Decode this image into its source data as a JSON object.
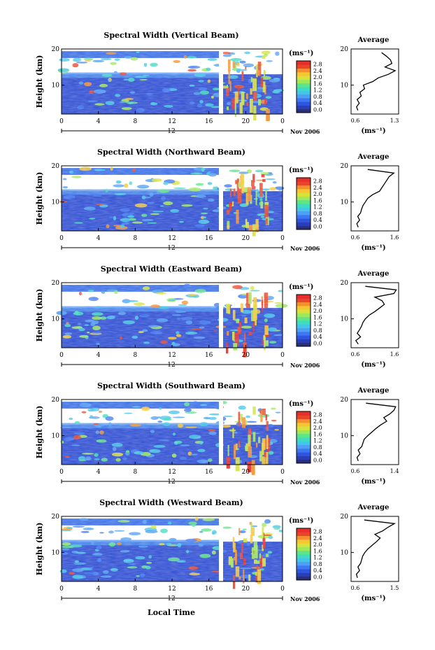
{
  "footer": {
    "xlabel": "Local Time"
  },
  "colorbar": {
    "unit": "(ms⁻¹)",
    "ticks": [
      "0.0",
      "0.4",
      "0.8",
      "1.2",
      "1.6",
      "2.0",
      "2.4",
      "2.8"
    ],
    "colors": [
      "#2b2f7a",
      "#2a3fb5",
      "#2f55e0",
      "#3d78f2",
      "#4f9ff5",
      "#43c6e8",
      "#3fdcc0",
      "#5fe488",
      "#9ee85a",
      "#d8e23a",
      "#f5c534",
      "#f38f2c",
      "#e9452a",
      "#e62f2a"
    ]
  },
  "panels": [
    {
      "title": "Spectral Width (Vertical Beam)",
      "profile_title": "Average",
      "x_unit": "(ms⁻¹)",
      "x_ticks": [
        "0.6",
        "1.3"
      ]
    },
    {
      "title": "Spectral Width (Northward Beam)",
      "profile_title": "Average",
      "x_unit": "(ms⁻¹)",
      "x_ticks": [
        "0.6",
        "1.6"
      ]
    },
    {
      "title": "Spectral Width (Eastward Beam)",
      "profile_title": "Average",
      "x_unit": "(ms⁻¹)",
      "x_ticks": [
        "0.6",
        "1.6"
      ]
    },
    {
      "title": "Spectral Width (Southward Beam)",
      "profile_title": "Average",
      "x_unit": "(ms⁻¹)",
      "x_ticks": [
        "0.6",
        "1.4"
      ]
    },
    {
      "title": "Spectral Width (Westward Beam)",
      "profile_title": "Average",
      "x_unit": "(ms⁻¹)",
      "x_ticks": [
        "0.6",
        "1.5"
      ]
    }
  ],
  "chart_data": [
    {
      "type": "heatmap",
      "title": "Spectral Width (Vertical Beam)",
      "xlabel": "",
      "ylabel": "Height (km)",
      "x_ticks": [
        "0",
        "4",
        "8",
        "12",
        "16",
        "20",
        "0"
      ],
      "y_ticks": [
        "10",
        "20"
      ],
      "date_label": "12",
      "month_label": "Nov 2006",
      "ylim": [
        2,
        20
      ],
      "colorbar_range": [
        0.0,
        2.8
      ]
    },
    {
      "type": "line",
      "title": "Average",
      "xlabel": "(ms⁻¹)",
      "xlim": [
        0.6,
        1.3
      ],
      "ylim": [
        2,
        20
      ],
      "series": [
        {
          "height_km": [
            3,
            4,
            5,
            6,
            7,
            8,
            9,
            10,
            11,
            12,
            13,
            14,
            15,
            16,
            17,
            18,
            19
          ],
          "values": [
            0.7,
            0.68,
            0.72,
            0.69,
            0.75,
            0.73,
            0.8,
            0.78,
            0.92,
            1.0,
            1.15,
            1.25,
            1.1,
            1.2,
            1.18,
            1.12,
            1.05
          ]
        }
      ]
    },
    {
      "type": "heatmap",
      "title": "Spectral Width (Northward Beam)",
      "xlabel": "",
      "ylabel": "Height (km)",
      "x_ticks": [
        "0",
        "4",
        "8",
        "12",
        "16",
        "20",
        "0"
      ],
      "y_ticks": [
        "10",
        "20"
      ],
      "date_label": "12",
      "month_label": "Nov 2006",
      "ylim": [
        2,
        20
      ],
      "colorbar_range": [
        0.0,
        2.8
      ]
    },
    {
      "type": "line",
      "title": "Average",
      "xlabel": "(ms⁻¹)",
      "xlim": [
        0.6,
        1.6
      ],
      "ylim": [
        2,
        20
      ],
      "series": [
        {
          "height_km": [
            3,
            4,
            5,
            6,
            7,
            8,
            9,
            10,
            11,
            12,
            13,
            14,
            15,
            16,
            17,
            18,
            19
          ],
          "values": [
            0.75,
            0.72,
            0.78,
            0.74,
            0.8,
            0.82,
            0.85,
            0.9,
            0.95,
            1.05,
            1.2,
            1.25,
            1.3,
            1.35,
            1.4,
            1.5,
            0.95
          ]
        }
      ]
    },
    {
      "type": "heatmap",
      "title": "Spectral Width (Eastward Beam)",
      "xlabel": "",
      "ylabel": "Height (km)",
      "x_ticks": [
        "0",
        "4",
        "8",
        "12",
        "16",
        "20",
        "0"
      ],
      "y_ticks": [
        "10",
        "20"
      ],
      "date_label": "12",
      "month_label": "Nov 2006",
      "ylim": [
        2,
        20
      ],
      "colorbar_range": [
        0.0,
        2.8
      ]
    },
    {
      "type": "line",
      "title": "Average",
      "xlabel": "(ms⁻¹)",
      "xlim": [
        0.6,
        1.6
      ],
      "ylim": [
        2,
        20
      ],
      "series": [
        {
          "height_km": [
            3,
            4,
            5,
            6,
            7,
            8,
            9,
            10,
            11,
            12,
            13,
            14,
            15,
            16,
            17,
            18,
            19
          ],
          "values": [
            0.75,
            0.7,
            0.8,
            0.73,
            0.78,
            0.82,
            0.85,
            0.9,
            0.98,
            1.1,
            1.2,
            1.3,
            1.25,
            1.1,
            1.5,
            1.55,
            0.9
          ]
        }
      ]
    },
    {
      "type": "heatmap",
      "title": "Spectral Width (Southward Beam)",
      "xlabel": "",
      "ylabel": "Height (km)",
      "x_ticks": [
        "0",
        "4",
        "8",
        "12",
        "16",
        "20",
        "0"
      ],
      "y_ticks": [
        "10",
        "20"
      ],
      "date_label": "12",
      "month_label": "Nov 2006",
      "ylim": [
        2,
        20
      ],
      "colorbar_range": [
        0.0,
        2.8
      ]
    },
    {
      "type": "line",
      "title": "Average",
      "xlabel": "(ms⁻¹)",
      "xlim": [
        0.6,
        1.4
      ],
      "ylim": [
        2,
        20
      ],
      "series": [
        {
          "height_km": [
            3,
            4,
            5,
            6,
            7,
            8,
            9,
            10,
            11,
            12,
            13,
            14,
            15,
            16,
            17,
            18,
            19
          ],
          "values": [
            0.72,
            0.7,
            0.75,
            0.72,
            0.78,
            0.8,
            0.82,
            0.88,
            0.95,
            1.02,
            1.1,
            1.2,
            1.15,
            1.25,
            1.32,
            1.35,
            0.85
          ]
        }
      ]
    },
    {
      "type": "heatmap",
      "title": "Spectral Width (Westward Beam)",
      "xlabel": "Local Time",
      "ylabel": "Height (km)",
      "x_ticks": [
        "0",
        "4",
        "8",
        "12",
        "16",
        "20",
        "0"
      ],
      "y_ticks": [
        "10",
        "20"
      ],
      "date_label": "12",
      "month_label": "Nov 2006",
      "ylim": [
        2,
        20
      ],
      "colorbar_range": [
        0.0,
        2.8
      ]
    },
    {
      "type": "line",
      "title": "Average",
      "xlabel": "(ms⁻¹)",
      "xlim": [
        0.6,
        1.5
      ],
      "ylim": [
        2,
        20
      ],
      "series": [
        {
          "height_km": [
            3,
            4,
            5,
            6,
            7,
            8,
            9,
            10,
            11,
            12,
            13,
            14,
            15,
            16,
            17,
            18,
            19
          ],
          "values": [
            0.72,
            0.7,
            0.76,
            0.73,
            0.78,
            0.8,
            0.82,
            0.86,
            0.92,
            1.0,
            1.08,
            1.15,
            1.05,
            1.2,
            1.3,
            1.42,
            0.85
          ]
        }
      ]
    }
  ]
}
